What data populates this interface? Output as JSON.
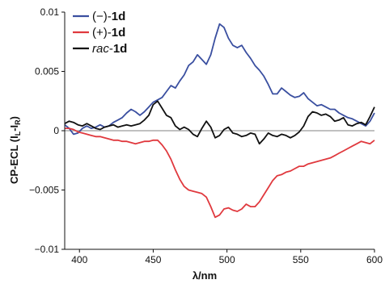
{
  "chart_data": {
    "type": "line",
    "title": "",
    "xlabel": "λ/nm",
    "ylabel": "CP-ECL (I",
    "ylabel_sub": "L",
    "ylabel_mid": "-I",
    "ylabel_sub2": "R",
    "ylabel_end": ")",
    "xlim": [
      390,
      600
    ],
    "ylim": [
      -0.01,
      0.01
    ],
    "xticks": [
      400,
      450,
      500,
      550,
      600
    ],
    "yticks": [
      -0.01,
      -0.005,
      0,
      0.005,
      0.01
    ],
    "xtick_labels": [
      "400",
      "450",
      "500",
      "550",
      "600"
    ],
    "ytick_labels": [
      "−0.01",
      "−0.005",
      "0",
      "0.005",
      "0.01"
    ],
    "zero_line": true,
    "grid": false,
    "legend_position": "top-left",
    "series": [
      {
        "name_prefix": "(−)-",
        "name_bold": "1d",
        "color": "#3a4fa0",
        "x": [
          390,
          393,
          396,
          399,
          402,
          405,
          408,
          411,
          414,
          417,
          420,
          423,
          426,
          429,
          432,
          435,
          438,
          441,
          444,
          447,
          450,
          453,
          456,
          459,
          462,
          465,
          468,
          471,
          474,
          477,
          480,
          483,
          486,
          489,
          492,
          495,
          498,
          501,
          504,
          507,
          510,
          513,
          516,
          519,
          522,
          525,
          528,
          531,
          534,
          537,
          540,
          543,
          546,
          549,
          552,
          555,
          558,
          561,
          564,
          567,
          570,
          573,
          576,
          579,
          582,
          585,
          588,
          591,
          594,
          597,
          600
        ],
        "y": [
          0.0005,
          0.0002,
          -0.0003,
          -0.0002,
          0.0002,
          0.0004,
          0.0002,
          0.0003,
          0.0005,
          0.0003,
          0.0004,
          0.0007,
          0.0009,
          0.0011,
          0.0015,
          0.0018,
          0.0016,
          0.0013,
          0.0016,
          0.002,
          0.0024,
          0.0026,
          0.0028,
          0.0033,
          0.0038,
          0.0036,
          0.0042,
          0.0047,
          0.0055,
          0.0058,
          0.0064,
          0.006,
          0.0056,
          0.0064,
          0.0078,
          0.009,
          0.0087,
          0.0078,
          0.0072,
          0.007,
          0.0072,
          0.0066,
          0.0061,
          0.0055,
          0.0051,
          0.0046,
          0.0039,
          0.0031,
          0.0031,
          0.0036,
          0.0033,
          0.003,
          0.0028,
          0.0029,
          0.0032,
          0.0027,
          0.0024,
          0.0021,
          0.0022,
          0.002,
          0.0018,
          0.0018,
          0.0015,
          0.0013,
          0.0011,
          0.001,
          0.0008,
          0.0006,
          0.0004,
          0.0008,
          0.0015
        ]
      },
      {
        "name_prefix": "(+)-",
        "name_bold": "1d",
        "color": "#e0393e",
        "x": [
          390,
          393,
          396,
          399,
          402,
          405,
          408,
          411,
          414,
          417,
          420,
          423,
          426,
          429,
          432,
          435,
          438,
          441,
          444,
          447,
          450,
          453,
          456,
          459,
          462,
          465,
          468,
          471,
          474,
          477,
          480,
          483,
          486,
          489,
          492,
          495,
          498,
          501,
          504,
          507,
          510,
          513,
          516,
          519,
          522,
          525,
          528,
          531,
          534,
          537,
          540,
          543,
          546,
          549,
          552,
          555,
          558,
          561,
          564,
          567,
          570,
          573,
          576,
          579,
          582,
          585,
          588,
          591,
          594,
          597,
          600
        ],
        "y": [
          0.0002,
          0.0002,
          0.0001,
          -0.0001,
          -0.0002,
          -0.0003,
          -0.0004,
          -0.0005,
          -0.0005,
          -0.0006,
          -0.0007,
          -0.0008,
          -0.0008,
          -0.0009,
          -0.0009,
          -0.001,
          -0.0011,
          -0.001,
          -0.0009,
          -0.0009,
          -0.0008,
          -0.0008,
          -0.0012,
          -0.0017,
          -0.0024,
          -0.0033,
          -0.0041,
          -0.0047,
          -0.005,
          -0.0051,
          -0.0052,
          -0.0053,
          -0.0056,
          -0.0064,
          -0.0073,
          -0.0071,
          -0.0066,
          -0.0065,
          -0.0067,
          -0.0068,
          -0.0066,
          -0.0062,
          -0.0064,
          -0.0064,
          -0.006,
          -0.0054,
          -0.0048,
          -0.0042,
          -0.0038,
          -0.0037,
          -0.0035,
          -0.0034,
          -0.0032,
          -0.003,
          -0.003,
          -0.0028,
          -0.0027,
          -0.0026,
          -0.0025,
          -0.0024,
          -0.0023,
          -0.0021,
          -0.0019,
          -0.0017,
          -0.0015,
          -0.0013,
          -0.0011,
          -0.0009,
          -0.001,
          -0.0011,
          -0.0008
        ]
      },
      {
        "name_prefix": "rac",
        "name_prefix_italic": true,
        "name_mid": "-",
        "name_bold": "1d",
        "color": "#111111",
        "x": [
          390,
          393,
          396,
          399,
          402,
          405,
          408,
          411,
          414,
          417,
          420,
          423,
          426,
          429,
          432,
          435,
          438,
          441,
          444,
          447,
          450,
          453,
          456,
          459,
          462,
          465,
          468,
          471,
          474,
          477,
          480,
          483,
          486,
          489,
          492,
          495,
          498,
          501,
          504,
          507,
          510,
          513,
          516,
          519,
          522,
          525,
          528,
          531,
          534,
          537,
          540,
          543,
          546,
          549,
          552,
          555,
          558,
          561,
          564,
          567,
          570,
          573,
          576,
          579,
          582,
          585,
          588,
          591,
          594,
          597,
          600
        ],
        "y": [
          0.0006,
          0.0008,
          0.0007,
          0.0005,
          0.0004,
          0.0006,
          0.0004,
          0.0002,
          0.0001,
          0.0003,
          0.0004,
          0.0005,
          0.0003,
          0.0004,
          0.0005,
          0.0004,
          0.0005,
          0.0006,
          0.0009,
          0.0013,
          0.0022,
          0.0025,
          0.0019,
          0.0013,
          0.0011,
          0.0004,
          0.0001,
          0.0003,
          0.0001,
          -0.0003,
          -0.0005,
          0.0002,
          0.0008,
          0.0003,
          -0.0006,
          -0.0004,
          0.0001,
          0.0003,
          -0.0002,
          -0.0003,
          -0.0005,
          -0.0004,
          -0.0002,
          -0.0003,
          -0.0011,
          -0.0007,
          -0.0002,
          -0.0004,
          -0.0005,
          -0.0003,
          -0.0004,
          -0.0006,
          -0.0004,
          -0.0001,
          0.0004,
          0.0012,
          0.0016,
          0.0015,
          0.0013,
          0.0014,
          0.0012,
          0.0008,
          0.0009,
          0.0011,
          0.0005,
          0.0004,
          0.0006,
          0.0007,
          0.0005,
          0.0012,
          0.002
        ]
      }
    ]
  }
}
